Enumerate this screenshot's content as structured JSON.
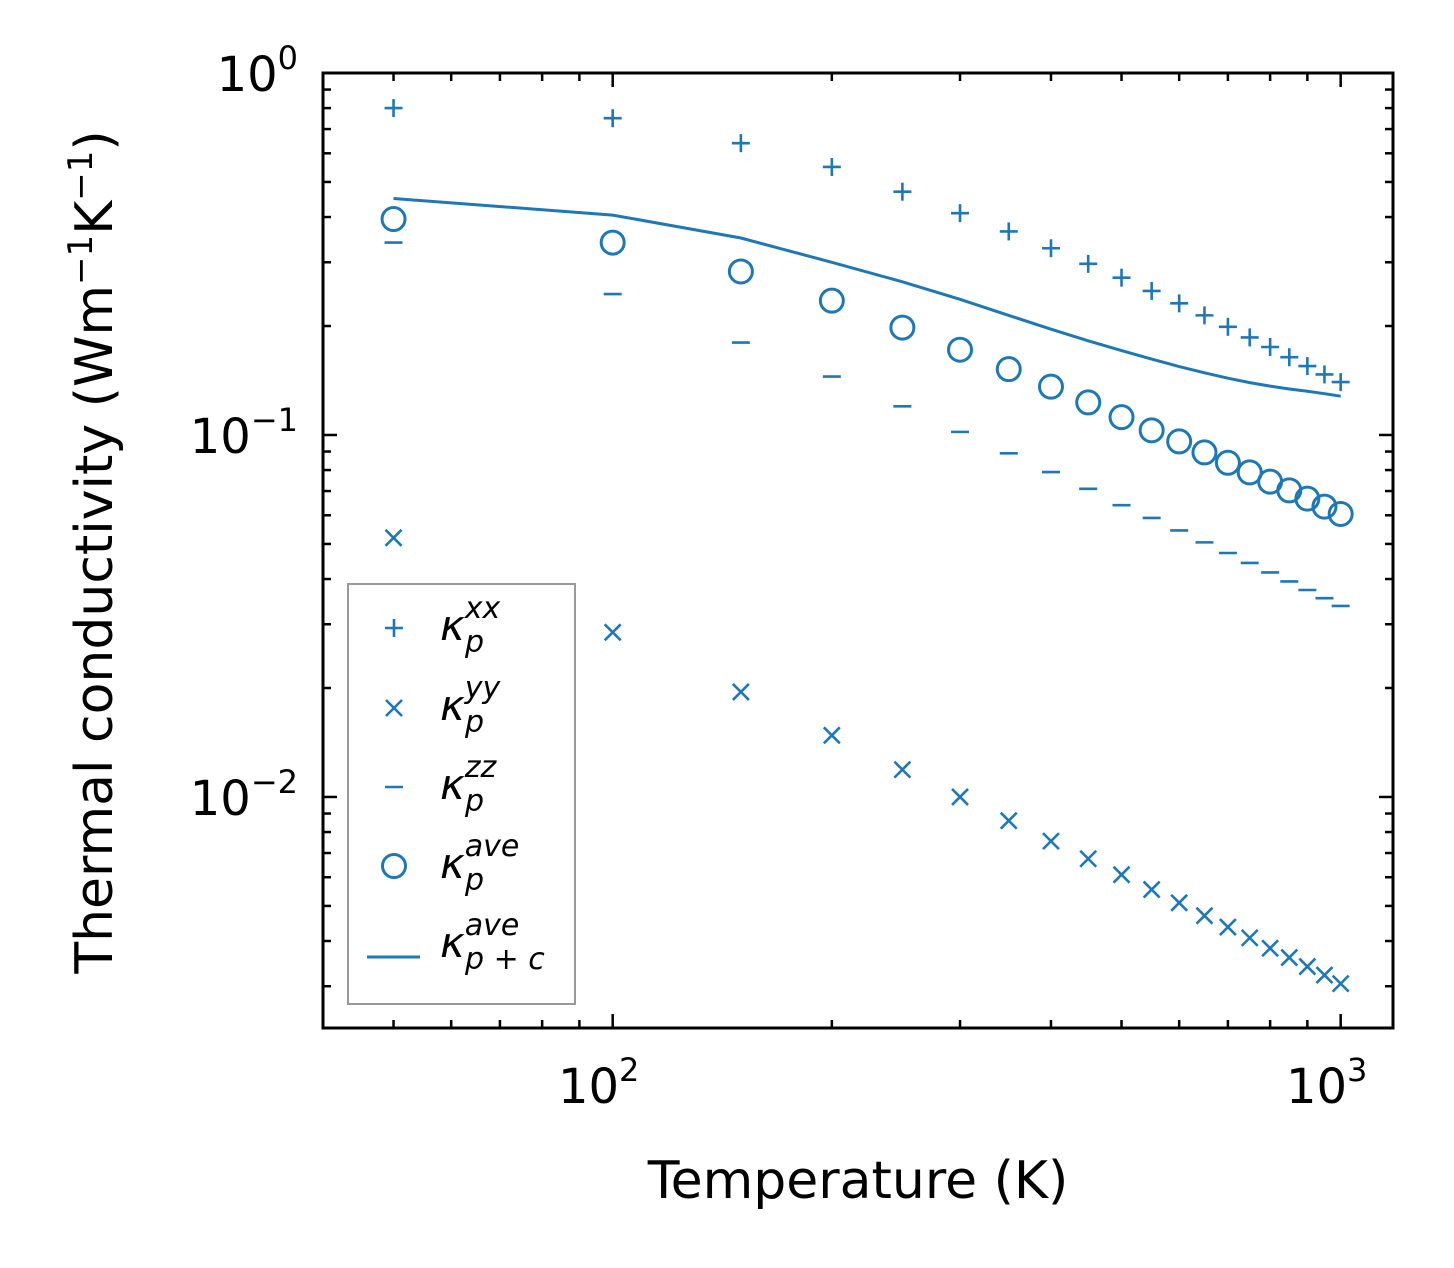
{
  "chart_data": {
    "type": "scatter",
    "title": "",
    "xlabel": "Temperature (K)",
    "ylabel_parts": [
      "Thermal conductivity (Wm",
      "−1",
      "K",
      "−1",
      ")"
    ],
    "xscale": "log",
    "yscale": "log",
    "xlim": [
      40,
      1180
    ],
    "ylim": [
      0.0023,
      1.0
    ],
    "xticks": [
      {
        "base": "10",
        "exp": "2",
        "value": 100
      },
      {
        "base": "10",
        "exp": "3",
        "value": 1000
      }
    ],
    "yticks": [
      {
        "base": "10",
        "exp": "−2",
        "value": 0.01
      },
      {
        "base": "10",
        "exp": "−1",
        "value": 0.1
      },
      {
        "base": "10",
        "exp": "0",
        "value": 1
      }
    ],
    "color": "#1f77b4",
    "x": [
      50,
      100,
      150,
      200,
      250,
      300,
      350,
      400,
      450,
      500,
      550,
      600,
      650,
      700,
      750,
      800,
      850,
      900,
      950,
      1000
    ],
    "series": [
      {
        "name": "kxx",
        "marker": "plus",
        "label_base": "κ",
        "label_sub": "p",
        "label_sup": "xx",
        "values": [
          0.8,
          0.75,
          0.64,
          0.55,
          0.47,
          0.41,
          0.365,
          0.328,
          0.297,
          0.272,
          0.25,
          0.231,
          0.214,
          0.199,
          0.186,
          0.175,
          0.164,
          0.155,
          0.147,
          0.14
        ]
      },
      {
        "name": "kyy",
        "marker": "x",
        "label_base": "κ",
        "label_sub": "p",
        "label_sup": "yy",
        "values": [
          0.052,
          0.0285,
          0.0195,
          0.0148,
          0.0119,
          0.01,
          0.0086,
          0.00755,
          0.00675,
          0.0061,
          0.00555,
          0.0051,
          0.0047,
          0.00437,
          0.00408,
          0.00382,
          0.0036,
          0.0034,
          0.00322,
          0.00305
        ]
      },
      {
        "name": "kzz",
        "marker": "hline",
        "label_base": "κ",
        "label_sub": "p",
        "label_sup": "zz",
        "values": [
          0.34,
          0.245,
          0.18,
          0.145,
          0.12,
          0.102,
          0.089,
          0.079,
          0.071,
          0.064,
          0.059,
          0.0545,
          0.0505,
          0.0472,
          0.0443,
          0.0417,
          0.0394,
          0.0373,
          0.0354,
          0.0337
        ]
      },
      {
        "name": "kave",
        "marker": "circle",
        "label_base": "κ",
        "label_sub": "p",
        "label_sup": "ave",
        "values": [
          0.395,
          0.34,
          0.283,
          0.235,
          0.198,
          0.172,
          0.152,
          0.136,
          0.123,
          0.112,
          0.103,
          0.096,
          0.0895,
          0.0838,
          0.0788,
          0.0743,
          0.0703,
          0.0667,
          0.0634,
          0.0605
        ]
      },
      {
        "name": "kave_pc",
        "marker": "line",
        "label_base": "κ",
        "label_sub": "p + c",
        "label_sup": "ave",
        "values": [
          0.45,
          0.405,
          0.35,
          0.3,
          0.265,
          0.237,
          0.214,
          0.196,
          0.182,
          0.171,
          0.162,
          0.1545,
          0.1485,
          0.1435,
          0.1395,
          0.1365,
          0.134,
          0.132,
          0.13,
          0.128
        ]
      }
    ],
    "legend": {
      "position": "lower-left"
    },
    "grid": false
  }
}
